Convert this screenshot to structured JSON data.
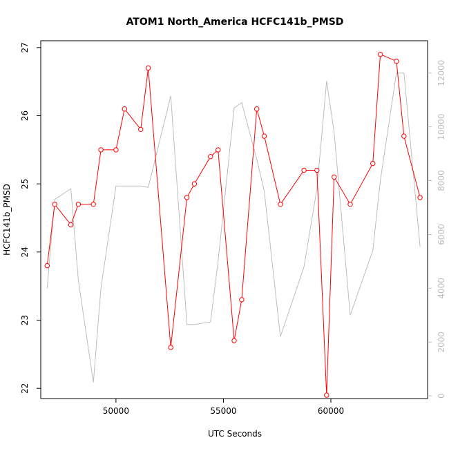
{
  "chart_data": {
    "type": "line",
    "title": "ATOM1 North_America HCFC141b_PMSD",
    "xlabel": "UTC Seconds",
    "ylabel": "HCFC141b_PMSD",
    "xlim": [
      46500,
      64500
    ],
    "ylim": [
      21.85,
      27.1
    ],
    "y2lim": [
      -100,
      13200
    ],
    "x_ticks": [
      50000,
      55000,
      60000
    ],
    "x_tick_labels": [
      "50000",
      "55000",
      "60000"
    ],
    "y_ticks": [
      22,
      23,
      24,
      25,
      26,
      27
    ],
    "y_tick_labels": [
      "22",
      "23",
      "24",
      "25",
      "26",
      "27"
    ],
    "y2_ticks": [
      0,
      2000,
      4000,
      6000,
      8000,
      10000,
      12000
    ],
    "y2_tick_labels": [
      "0",
      "2000",
      "4000",
      "6000",
      "8000",
      "10000",
      "12000"
    ],
    "grid": false,
    "series": [
      {
        "axis": "left",
        "color": "#ff0000",
        "marker": "open-circle",
        "x": [
          46800,
          47150,
          47900,
          48250,
          48950,
          49300,
          50000,
          50400,
          51150,
          51500,
          52550,
          53300,
          53650,
          54400,
          54750,
          55500,
          55850,
          56550,
          56900,
          57650,
          58750,
          59350,
          59800,
          60150,
          60900,
          61950,
          62300,
          63050,
          63400,
          64150
        ],
        "values": [
          23.8,
          24.7,
          24.4,
          24.7,
          24.7,
          25.5,
          25.5,
          26.1,
          25.8,
          26.7,
          22.6,
          24.8,
          25.0,
          25.4,
          25.5,
          22.7,
          23.3,
          26.1,
          25.7,
          24.7,
          25.2,
          25.2,
          21.9,
          25.1,
          24.7,
          25.3,
          26.9,
          26.8,
          25.7,
          24.8
        ]
      },
      {
        "axis": "right",
        "color": "#bdbdbd",
        "marker": "none",
        "x": [
          46800,
          47150,
          47900,
          48250,
          48950,
          49300,
          50000,
          50400,
          51150,
          51500,
          52550,
          53300,
          53650,
          54400,
          54750,
          55500,
          55850,
          56550,
          56900,
          57650,
          58750,
          59350,
          59800,
          60150,
          60900,
          61950,
          62300,
          63050,
          63400,
          64150
        ],
        "values": [
          4000,
          7300,
          7700,
          4300,
          500,
          4000,
          7800,
          7800,
          7800,
          7750,
          11150,
          2650,
          2650,
          2750,
          5000,
          10700,
          10900,
          8800,
          7600,
          2200,
          4800,
          7700,
          11700,
          9800,
          3000,
          5400,
          8000,
          12000,
          12000,
          5550
        ]
      }
    ]
  }
}
